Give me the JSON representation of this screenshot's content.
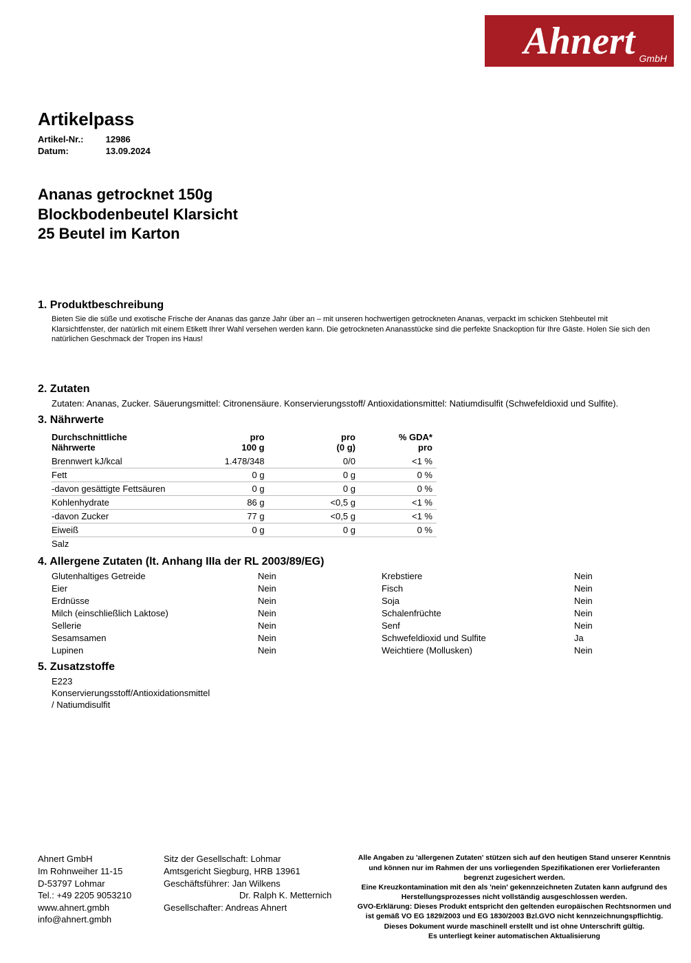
{
  "logo": {
    "brand": "Ahnert",
    "suffix": "GmbH"
  },
  "header": {
    "doc_title": "Artikelpass",
    "article_label": "Artikel-Nr.:",
    "article_no": "12986",
    "date_label": "Datum:",
    "date": "13.09.2024"
  },
  "product": {
    "line1": "Ananas getrocknet 150g",
    "line2": "Blockbodenbeutel Klarsicht",
    "line3": "25 Beutel im Karton"
  },
  "sections": {
    "s1": {
      "heading": "1. Produktbeschreibung",
      "text": "Bieten Sie die süße und exotische Frische der Ananas das ganze Jahr über an – mit unseren hochwertigen getrockneten Ananas, verpackt im schicken Stehbeutel mit Klarsichtfenster, der natürlich mit einem Etikett Ihrer Wahl versehen werden kann. Die getrockneten Ananasstücke sind die perfekte Snackoption für Ihre Gäste. Holen Sie sich den natürlichen Geschmack der Tropen ins Haus!"
    },
    "s2": {
      "heading": "2. Zutaten",
      "text": "Zutaten: Ananas, Zucker. Säuerungsmittel: Citronensäure. Konservierungsstoff/ Antioxidationsmittel: Natiumdisulfit (Schwefeldioxid und Sulfite)."
    },
    "s3": {
      "heading": "3. Nährwerte",
      "cols": {
        "c1a": "Durchschnittliche",
        "c1b": "Nährwerte",
        "c2a": "pro",
        "c2b": "100 g",
        "c3a": "pro",
        "c3b": "(0 g)",
        "c4a": "% GDA*",
        "c4b": "pro"
      },
      "rows": [
        {
          "n": "Brennwert kJ/kcal",
          "a": "1.478/348",
          "b": "0/0",
          "c": "<1 %"
        },
        {
          "n": "Fett",
          "a": "0 g",
          "b": "0 g",
          "c": "0 %"
        },
        {
          "n": "-davon gesättigte Fettsäuren",
          "a": "0 g",
          "b": "0 g",
          "c": "0 %"
        },
        {
          "n": "Kohlenhydrate",
          "a": "86 g",
          "b": "<0,5 g",
          "c": "<1 %"
        },
        {
          "n": "-davon Zucker",
          "a": "77 g",
          "b": "<0,5 g",
          "c": "<1 %"
        },
        {
          "n": "Eiweiß",
          "a": "0 g",
          "b": "0 g",
          "c": "0 %"
        },
        {
          "n": "Salz",
          "a": "",
          "b": "",
          "c": ""
        }
      ]
    },
    "s4": {
      "heading": "4. Allergene Zutaten (lt. Anhang IIIa der RL 2003/89/EG)",
      "rows": [
        {
          "l": "Glutenhaltiges Getreide",
          "lv": "Nein",
          "r": "Krebstiere",
          "rv": "Nein"
        },
        {
          "l": "Eier",
          "lv": "Nein",
          "r": "Fisch",
          "rv": "Nein"
        },
        {
          "l": "Erdnüsse",
          "lv": "Nein",
          "r": "Soja",
          "rv": "Nein"
        },
        {
          "l": "Milch (einschließlich Laktose)",
          "lv": "Nein",
          "r": "Schalenfrüchte",
          "rv": "Nein"
        },
        {
          "l": "Sellerie",
          "lv": "Nein",
          "r": "Senf",
          "rv": "Nein"
        },
        {
          "l": "Sesamsamen",
          "lv": "Nein",
          "r": "Schwefeldioxid und Sulfite",
          "rv": "Ja"
        },
        {
          "l": "Lupinen",
          "lv": "Nein",
          "r": "Weichtiere (Mollusken)",
          "rv": "Nein"
        }
      ]
    },
    "s5": {
      "heading": "5. Zusatzstoffe",
      "line1": "E223",
      "line2": "Konservierungsstoff/Antioxidationsmittel / Natiumdisulfit"
    }
  },
  "footer": {
    "col1": {
      "l1": "Ahnert GmbH",
      "l2": "Im Rohnweiher 11-15",
      "l3": "D-53797 Lohmar",
      "l4": "Tel.: +49 2205 9053210",
      "l5": "www.ahnert.gmbh",
      "l6": "info@ahnert.gmbh"
    },
    "col2": {
      "l1": "Sitz der Gesellschaft: Lohmar",
      "l2": "Amtsgericht Siegburg, HRB 13961",
      "l3": "Geschäftsführer: Jan Wilkens",
      "l4": "Dr. Ralph K. Metternich",
      "l5": "Gesellschafter: Andreas Ahnert"
    },
    "col3": {
      "l1": "Alle Angaben zu 'allergenen Zutaten' stützen sich auf den heutigen Stand unserer Kenntnis und können nur im Rahmen der uns vorliegenden Spezifikationen erer Vorlieferanten begrenzt zugesichert werden.",
      "l2": "Eine Kreuzkontamination mit den als 'nein' gekennzeichneten Zutaten kann aufgrund des Herstellungsprozesses nicht vollständig ausgeschlossen werden.",
      "l3": "GVO-Erklärung: Dieses Produkt entspricht den geltenden europäischen Rechtsnormen und ist gemäß VO EG 1829/2003 und EG 1830/2003 Bzl.GVO nicht kennzeichnungspflichtig.",
      "l4": "Dieses Dokument wurde maschinell erstellt und ist ohne Unterschrift gültig.",
      "l5": "Es unterliegt keiner automatischen Aktualisierung"
    }
  }
}
